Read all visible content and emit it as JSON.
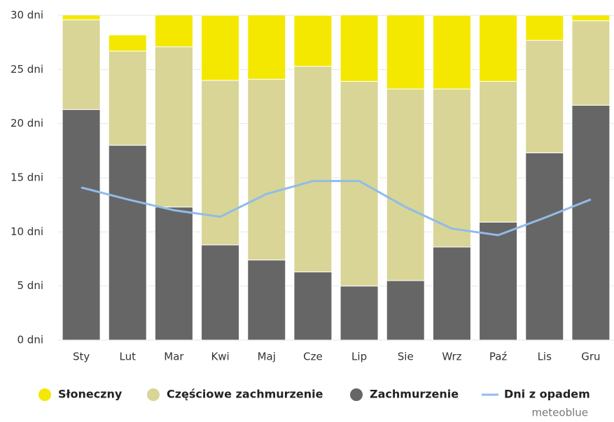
{
  "chart_data": {
    "type": "bar",
    "stacked": true,
    "categories": [
      "Sty",
      "Lut",
      "Mar",
      "Kwi",
      "Maj",
      "Cze",
      "Lip",
      "Sie",
      "Wrz",
      "Paź",
      "Lis",
      "Gru"
    ],
    "series": [
      {
        "name": "Zachmurzenie",
        "color": "#666666",
        "values": [
          21.3,
          18.0,
          12.3,
          8.8,
          7.4,
          6.3,
          5.0,
          5.5,
          8.6,
          10.9,
          17.3,
          21.7
        ]
      },
      {
        "name": "Częściowe zachmurzenie",
        "color": "#d8d596",
        "values": [
          8.3,
          8.7,
          14.8,
          15.2,
          16.7,
          19.0,
          18.9,
          17.7,
          14.6,
          13.0,
          10.4,
          7.8
        ]
      },
      {
        "name": "Słoneczny",
        "color": "#f5e800",
        "values": [
          1.4,
          1.5,
          3.9,
          6.0,
          6.9,
          4.7,
          7.1,
          7.8,
          6.8,
          7.1,
          2.3,
          1.5
        ]
      },
      {
        "name": "Dni z opadem",
        "type": "line",
        "color": "#90bce8",
        "values": [
          14.1,
          13.0,
          12.0,
          11.4,
          13.5,
          14.7,
          14.7,
          12.3,
          10.3,
          9.7,
          11.3,
          13.0
        ]
      }
    ],
    "legend_order": [
      2,
      1,
      0,
      3
    ],
    "ylim": [
      0,
      30
    ],
    "yticks": [
      {
        "value": 0,
        "label": "0 dni"
      },
      {
        "value": 5,
        "label": "5 dni"
      },
      {
        "value": 10,
        "label": "10 dni"
      },
      {
        "value": 15,
        "label": "15 dni"
      },
      {
        "value": 20,
        "label": "20 dni"
      },
      {
        "value": 25,
        "label": "25 dni"
      },
      {
        "value": 30,
        "label": "30 dni"
      }
    ],
    "grid": true,
    "credit": "meteoblue"
  }
}
